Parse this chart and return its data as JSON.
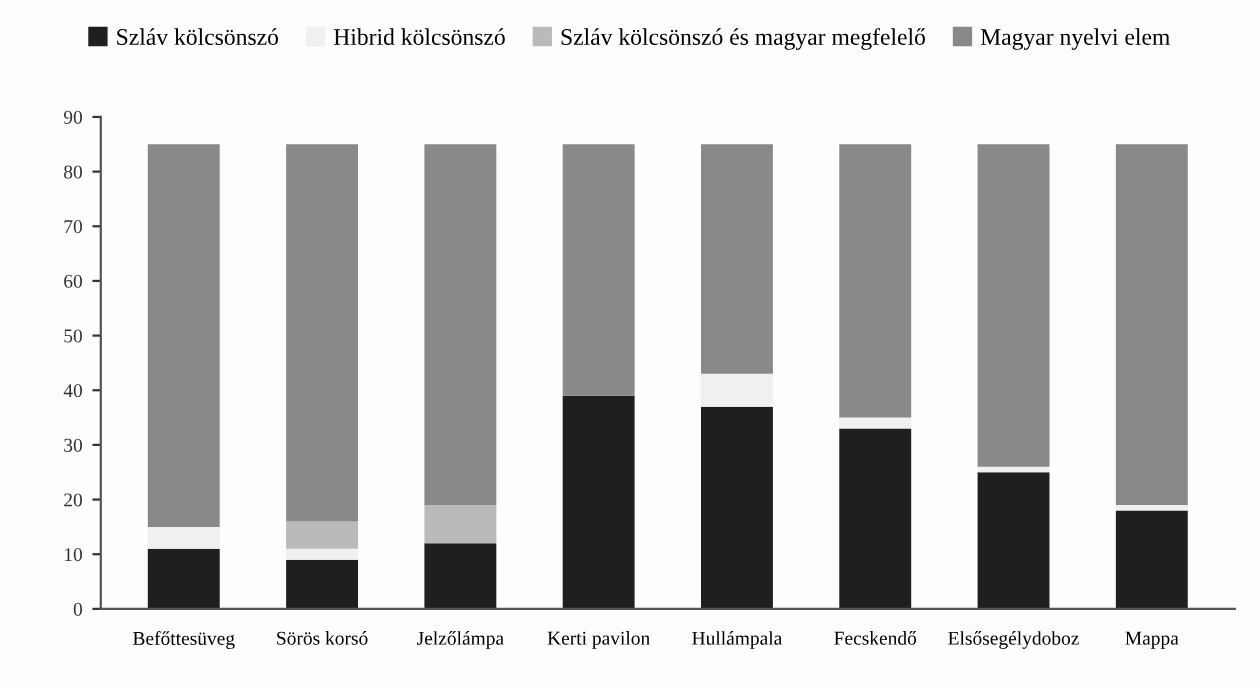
{
  "chart_data": {
    "type": "bar",
    "stacked": true,
    "categories": [
      "Befőttesüveg",
      "Sörös korsó",
      "Jelzőlámpa",
      "Kerti pavilon",
      "Hullámpala",
      "Fecskendő",
      "Elsősegélydoboz",
      "Mappa"
    ],
    "series": [
      {
        "name": "Szláv kölcsönszó",
        "color": "#1e1f1e",
        "values": [
          11,
          9,
          12,
          39,
          37,
          33,
          25,
          18
        ]
      },
      {
        "name": "Hibrid kölcsönszó",
        "color": "#f0f0f0",
        "values": [
          4,
          2,
          0,
          0,
          6,
          2,
          1,
          1
        ]
      },
      {
        "name": "Szláv kölcsönszó és magyar megfelelő",
        "color": "#bababa",
        "values": [
          0,
          5,
          7,
          0,
          0,
          0,
          0,
          0
        ]
      },
      {
        "name": "Magyar nyelvi elem",
        "color": "#898989",
        "values": [
          70,
          69,
          66,
          46,
          42,
          50,
          59,
          66
        ]
      }
    ],
    "ylim": [
      0,
      90
    ],
    "yticks": [
      0,
      10,
      20,
      30,
      40,
      50,
      60,
      70,
      80,
      90
    ],
    "grid": false,
    "legend": "top"
  }
}
